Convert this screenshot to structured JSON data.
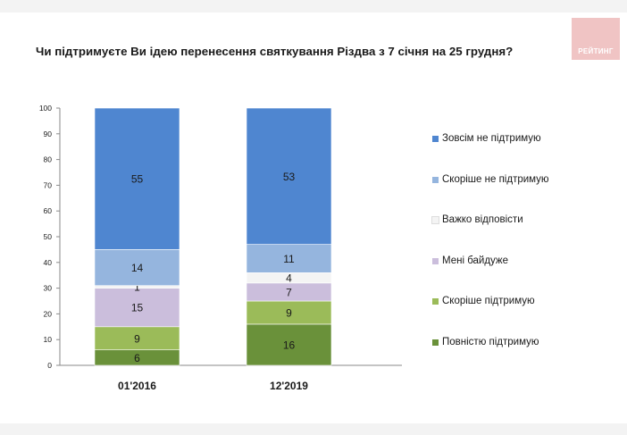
{
  "header": {
    "title": "Чи підтримуєте Ви ідею перенесення святкування Різдва з 7 січня на 25 грудня?",
    "logo_text": "РЕЙТИНГ"
  },
  "colors": {
    "logo_bg": "#f0c4c4",
    "series": [
      "#6a913a",
      "#9bbb59",
      "#cbbedc",
      "#f4f4f4",
      "#95b5de",
      "#4f86d0"
    ]
  },
  "chart_data": {
    "type": "bar",
    "stacked": true,
    "title": "Чи підтримуєте Ви ідею перенесення святкування Різдва з 7 січня на 25 грудня?",
    "categories": [
      "01'2016",
      "12'2019"
    ],
    "ylim": [
      0,
      100
    ],
    "yticks": [
      0,
      10,
      20,
      30,
      40,
      50,
      60,
      70,
      80,
      90,
      100
    ],
    "grid": false,
    "legend_position": "right",
    "series": [
      {
        "name": "Повністю підтримую",
        "values": [
          6,
          16
        ],
        "color": "#6a913a"
      },
      {
        "name": "Скоріше  підтримую",
        "values": [
          9,
          9
        ],
        "color": "#9bbb59"
      },
      {
        "name": "Мені байдуже",
        "values": [
          15,
          7
        ],
        "color": "#cbbedc"
      },
      {
        "name": "Важко відповісти",
        "values": [
          1,
          4
        ],
        "color": "#f4f4f4"
      },
      {
        "name": "Скоріше  не підтримую",
        "values": [
          14,
          11
        ],
        "color": "#95b5de"
      },
      {
        "name": "Зовсім не підтримую",
        "values": [
          55,
          53
        ],
        "color": "#4f86d0"
      }
    ]
  }
}
